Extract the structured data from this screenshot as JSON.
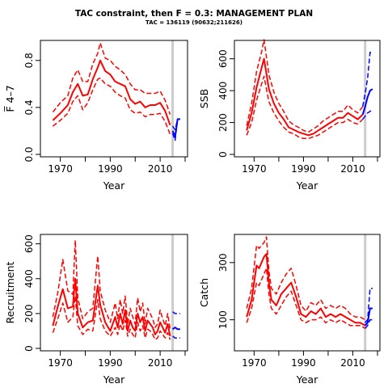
{
  "title": "TAC constraint, then F = 0.3: MANAGEMENT PLAN",
  "subtitle": "TAC = 136119 (90632;211626)",
  "colors": {
    "historical": "#ff0000",
    "projection": "#0000ff",
    "marker_line": "#cccccc"
  },
  "chart_data": [
    {
      "type": "line",
      "xlabel": "Year",
      "ylabel": "F̅ 4–7",
      "xlim": [
        1963,
        2020
      ],
      "ylim": [
        0,
        0.95
      ],
      "xticks": [
        1970,
        1990,
        2010
      ],
      "yticks": [
        0,
        0.4,
        0.8
      ],
      "ytick_labels": [
        "0.0",
        "0.4",
        "0.8"
      ],
      "marker_year": 2015,
      "history": {
        "x": [
          1967,
          1970,
          1973,
          1975,
          1977,
          1979,
          1981,
          1983,
          1985,
          1986,
          1988,
          1990,
          1992,
          1994,
          1996,
          1998,
          2000,
          2002,
          2004,
          2006,
          2008,
          2010,
          2012,
          2014
        ],
        "mid": [
          0.29,
          0.35,
          0.42,
          0.53,
          0.6,
          0.5,
          0.51,
          0.64,
          0.74,
          0.8,
          0.71,
          0.68,
          0.62,
          0.6,
          0.58,
          0.47,
          0.43,
          0.45,
          0.4,
          0.42,
          0.42,
          0.44,
          0.37,
          0.25
        ],
        "low": [
          0.24,
          0.29,
          0.35,
          0.45,
          0.5,
          0.38,
          0.44,
          0.55,
          0.64,
          0.65,
          0.6,
          0.58,
          0.53,
          0.5,
          0.48,
          0.38,
          0.35,
          0.36,
          0.32,
          0.34,
          0.34,
          0.35,
          0.28,
          0.17
        ],
        "high": [
          0.36,
          0.44,
          0.5,
          0.65,
          0.72,
          0.62,
          0.62,
          0.77,
          0.86,
          0.95,
          0.82,
          0.8,
          0.75,
          0.72,
          0.68,
          0.6,
          0.55,
          0.55,
          0.52,
          0.52,
          0.52,
          0.54,
          0.46,
          0.34
        ]
      },
      "projection": {
        "x": [
          2015,
          2016,
          2017,
          2018
        ],
        "mid": [
          0.2,
          0.15,
          0.3,
          0.3
        ],
        "low": [
          0.18,
          0.12,
          0.3,
          0.3
        ],
        "high": [
          0.24,
          0.21,
          0.3,
          0.3
        ]
      }
    },
    {
      "type": "line",
      "xlabel": "Year",
      "ylabel": "SSB",
      "xlim": [
        1963,
        2020
      ],
      "ylim": [
        0,
        700
      ],
      "xticks": [
        1970,
        1990,
        2010
      ],
      "yticks": [
        0,
        200,
        400,
        600
      ],
      "ytick_labels": [
        "0",
        "200",
        "400",
        "600"
      ],
      "marker_year": 2015,
      "history": {
        "x": [
          1967,
          1969,
          1971,
          1973,
          1974,
          1976,
          1978,
          1980,
          1982,
          1984,
          1986,
          1988,
          1990,
          1992,
          1994,
          1996,
          1998,
          2000,
          2002,
          2004,
          2006,
          2008,
          2010,
          2012,
          2014
        ],
        "mid": [
          150,
          260,
          420,
          540,
          600,
          410,
          320,
          260,
          220,
          170,
          155,
          140,
          130,
          120,
          130,
          150,
          170,
          190,
          210,
          230,
          230,
          260,
          240,
          220,
          250
        ],
        "low": [
          120,
          200,
          340,
          440,
          490,
          330,
          260,
          210,
          170,
          140,
          130,
          110,
          100,
          100,
          110,
          120,
          140,
          160,
          180,
          200,
          200,
          220,
          200,
          190,
          220
        ],
        "high": [
          180,
          320,
          520,
          640,
          720,
          500,
          390,
          320,
          270,
          210,
          185,
          170,
          150,
          140,
          160,
          180,
          210,
          230,
          250,
          270,
          270,
          310,
          280,
          260,
          300
        ]
      },
      "projection": {
        "x": [
          2014,
          2015,
          2016,
          2017,
          2018
        ],
        "mid": [
          250,
          300,
          360,
          400,
          410
        ],
        "low": [
          220,
          240,
          260,
          270,
          280
        ],
        "high": [
          300,
          380,
          480,
          640,
          640
        ]
      }
    },
    {
      "type": "line",
      "xlabel": "Year",
      "ylabel": "Recruitment",
      "xlim": [
        1963,
        2020
      ],
      "ylim": [
        0,
        640
      ],
      "xticks": [
        1970,
        1990,
        2010
      ],
      "yticks": [
        0,
        200,
        400,
        600
      ],
      "ytick_labels": [
        "0",
        "200",
        "400",
        "600"
      ],
      "marker_year": 2015,
      "history": {
        "x": [
          1967,
          1969,
          1971,
          1973,
          1975,
          1976,
          1977,
          1979,
          1981,
          1983,
          1985,
          1986,
          1988,
          1990,
          1992,
          1993,
          1994,
          1995,
          1996,
          1997,
          1998,
          1999,
          2000,
          2001,
          2002,
          2003,
          2004,
          2005,
          2006,
          2007,
          2008,
          2009,
          2010,
          2011,
          2012,
          2013,
          2014
        ],
        "mid": [
          130,
          240,
          340,
          230,
          240,
          400,
          200,
          120,
          150,
          160,
          360,
          250,
          150,
          100,
          180,
          120,
          200,
          140,
          220,
          100,
          160,
          120,
          100,
          200,
          150,
          180,
          100,
          160,
          140,
          120,
          80,
          100,
          150,
          120,
          90,
          140,
          70
        ],
        "low": [
          90,
          170,
          260,
          150,
          180,
          300,
          130,
          80,
          110,
          100,
          280,
          170,
          100,
          70,
          120,
          80,
          140,
          100,
          160,
          70,
          110,
          80,
          60,
          150,
          100,
          130,
          60,
          110,
          100,
          80,
          50,
          60,
          100,
          80,
          60,
          90,
          50
        ],
        "high": [
          180,
          320,
          510,
          330,
          310,
          620,
          290,
          170,
          210,
          230,
          530,
          330,
          220,
          150,
          260,
          170,
          280,
          200,
          300,
          140,
          230,
          180,
          140,
          290,
          210,
          260,
          140,
          230,
          200,
          170,
          120,
          140,
          220,
          170,
          130,
          200,
          110
        ]
      },
      "projection": {
        "x": [
          2015,
          2016,
          2017,
          2018
        ],
        "mid": [
          110,
          120,
          110,
          110
        ],
        "low": [
          70,
          60,
          60,
          60
        ],
        "high": [
          210,
          200,
          200,
          200
        ]
      }
    },
    {
      "type": "line",
      "xlabel": "Year",
      "ylabel": "Catch",
      "xlim": [
        1963,
        2020
      ],
      "ylim": [
        0,
        390
      ],
      "xticks": [
        1970,
        1990,
        2010
      ],
      "yticks": [
        100,
        300
      ],
      "ytick_labels": [
        "100",
        "300"
      ],
      "marker_year": 2015,
      "history": {
        "x": [
          1967,
          1969,
          1971,
          1972,
          1974,
          1975,
          1976,
          1977,
          1979,
          1981,
          1983,
          1985,
          1987,
          1989,
          1991,
          1993,
          1995,
          1997,
          1999,
          2001,
          2003,
          2005,
          2007,
          2009,
          2011,
          2013,
          2015
        ],
        "mid": [
          110,
          170,
          290,
          280,
          320,
          330,
          230,
          170,
          150,
          190,
          210,
          230,
          180,
          120,
          110,
          130,
          120,
          140,
          110,
          120,
          110,
          120,
          110,
          100,
          90,
          90,
          80
        ],
        "low": [
          90,
          140,
          230,
          220,
          260,
          280,
          190,
          140,
          120,
          150,
          180,
          200,
          150,
          100,
          90,
          100,
          100,
          110,
          90,
          100,
          90,
          100,
          90,
          80,
          80,
          80,
          70
        ],
        "high": [
          140,
          210,
          360,
          350,
          370,
          390,
          270,
          210,
          190,
          230,
          260,
          280,
          220,
          150,
          130,
          160,
          150,
          170,
          140,
          150,
          140,
          150,
          140,
          120,
          110,
          110,
          100
        ]
      },
      "projection": {
        "x": [
          2015,
          2016,
          2017,
          2018
        ],
        "mid": [
          80,
          90,
          140,
          140
        ],
        "low": [
          70,
          80,
          100,
          100
        ],
        "high": [
          90,
          100,
          210,
          210
        ]
      }
    }
  ]
}
